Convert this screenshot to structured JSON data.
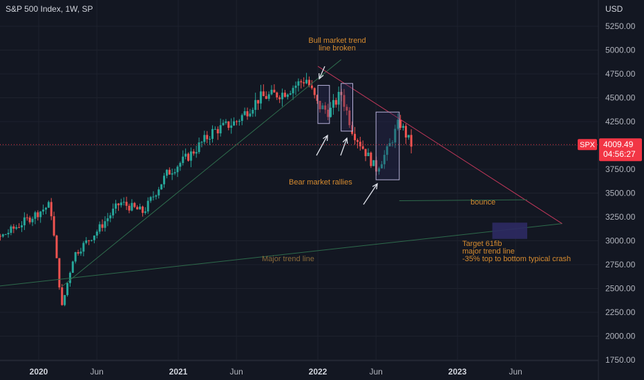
{
  "header": {
    "title": "S&P 500 Index, 1W, SP",
    "currency": "USD"
  },
  "price_label": {
    "symbol": "SPX",
    "last_price": "4009.49",
    "countdown": "04:56:27"
  },
  "colors": {
    "background": "#131722",
    "up": "#26a69a",
    "down": "#ef5350",
    "trend_green": "#2e6b4c",
    "trend_red": "#c2375a",
    "annotation": "#d68b2f",
    "box_border": "#b7b1d9",
    "box_fill": "#2b2756",
    "price_tag": "#f23645"
  },
  "chart_data": {
    "type": "candlestick",
    "title": "S&P 500 Index, 1W, SP",
    "ylim": [
      1750,
      5400
    ],
    "y_ticks": [
      "5250.00",
      "5000.00",
      "4750.00",
      "4500.00",
      "4250.00",
      "4000.00",
      "3750.00",
      "3500.00",
      "3250.00",
      "3000.00",
      "2750.00",
      "2500.00",
      "2250.00",
      "2000.00",
      "1750.00"
    ],
    "x_ticks": [
      {
        "label": "2020",
        "date": "2020-01",
        "year": true
      },
      {
        "label": "Jun",
        "date": "2020-06",
        "year": false
      },
      {
        "label": "2021",
        "date": "2021-01",
        "year": true
      },
      {
        "label": "Jun",
        "date": "2021-06",
        "year": false
      },
      {
        "label": "2022",
        "date": "2022-01",
        "year": true
      },
      {
        "label": "Jun",
        "date": "2022-06",
        "year": false
      },
      {
        "label": "2023",
        "date": "2023-01",
        "year": true
      },
      {
        "label": "Jun",
        "date": "2023-06",
        "year": false
      }
    ],
    "price_path": [
      [
        "2019-06",
        2950
      ],
      [
        "2019-09",
        2980
      ],
      [
        "2019-12",
        3220
      ],
      [
        "2020-02",
        3380
      ],
      [
        "2020-03",
        2300
      ],
      [
        "2020-04",
        2850
      ],
      [
        "2020-06",
        3100
      ],
      [
        "2020-08",
        3400
      ],
      [
        "2020-10",
        3300
      ],
      [
        "2020-12",
        3700
      ],
      [
        "2021-02",
        3900
      ],
      [
        "2021-04",
        4150
      ],
      [
        "2021-06",
        4250
      ],
      [
        "2021-08",
        4500
      ],
      [
        "2021-10",
        4550
      ],
      [
        "2021-12",
        4700
      ],
      [
        "2022-01",
        4420
      ],
      [
        "2022-02",
        4350
      ],
      [
        "2022-03",
        4550
      ],
      [
        "2022-04",
        4150
      ],
      [
        "2022-05",
        3950
      ],
      [
        "2022-06",
        3750
      ],
      [
        "2022-07",
        3950
      ],
      [
        "2022-08",
        4250
      ],
      [
        "2022-09",
        4009
      ]
    ],
    "lines": [
      {
        "name": "major-trend-line",
        "from": [
          "2019-04",
          2450
        ],
        "to": [
          "2023-10",
          3180
        ]
      },
      {
        "name": "bull-trend-line",
        "from": [
          "2020-03",
          2520
        ],
        "to": [
          "2022-03",
          4900
        ]
      },
      {
        "name": "bear-trend-line",
        "from": [
          "2022-01",
          4830
        ],
        "to": [
          "2023-10",
          3180
        ]
      },
      {
        "name": "bounce-level",
        "from": [
          "2022-08",
          3420
        ],
        "to": [
          "2023-07",
          3430
        ]
      }
    ],
    "boxes": [
      {
        "name": "rally-box-1",
        "from": [
          "2022-01",
          4630
        ],
        "to": [
          "2022-02",
          4230
        ]
      },
      {
        "name": "rally-box-2",
        "from": [
          "2022-03",
          4650
        ],
        "to": [
          "2022-04",
          4150
        ]
      },
      {
        "name": "rally-box-3",
        "from": [
          "2022-06",
          4350
        ],
        "to": [
          "2022-08",
          3640
        ]
      },
      {
        "name": "target-zone",
        "from": [
          "2023-04",
          3190
        ],
        "to": [
          "2023-07",
          3020
        ]
      }
    ],
    "annotations": [
      {
        "name": "bull-trend-broken",
        "lines": [
          "Bull market trend",
          "line broken"
        ]
      },
      {
        "name": "bear-rallies",
        "lines": [
          "Bear market rallies"
        ]
      },
      {
        "name": "bounce",
        "lines": [
          "bounce"
        ]
      },
      {
        "name": "target",
        "lines": [
          "Target 61fib",
          "major trend line",
          "-35% top to bottom typical crash"
        ]
      },
      {
        "name": "major-trend",
        "lines": [
          "Major trend line"
        ]
      }
    ]
  }
}
